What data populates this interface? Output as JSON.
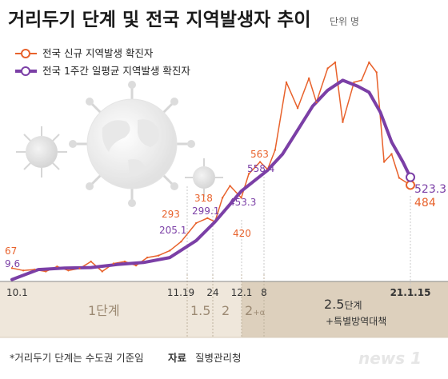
{
  "title": "거리두기 단계 및 전국 지역발생자 추이",
  "unit_label": "단위 명",
  "legend": [
    {
      "label": "전국 신규 지역발생 확진자",
      "color": "#e8622c"
    },
    {
      "label": "전국 1주간 일평균 지역발생 확진자",
      "color": "#7b3fa6"
    }
  ],
  "colors": {
    "daily": "#e8622c",
    "average": "#7b3fa6",
    "band_light": "#efe7db",
    "band_dark": "#ddd0bd"
  },
  "annotations": [
    {
      "text": "67",
      "series": "daily",
      "color": "#e8622c"
    },
    {
      "text": "9.6",
      "series": "average",
      "color": "#7b3fa6"
    },
    {
      "text": "293",
      "series": "daily",
      "color": "#e8622c"
    },
    {
      "text": "205.1",
      "series": "average",
      "color": "#7b3fa6"
    },
    {
      "text": "318",
      "series": "daily",
      "color": "#e8622c"
    },
    {
      "text": "299.1",
      "series": "average",
      "color": "#7b3fa6"
    },
    {
      "text": "453.3",
      "series": "average",
      "color": "#7b3fa6"
    },
    {
      "text": "420",
      "series": "daily",
      "color": "#e8622c"
    },
    {
      "text": "563",
      "series": "daily",
      "color": "#e8622c"
    },
    {
      "text": "558.4",
      "series": "average",
      "color": "#7b3fa6"
    },
    {
      "text": "523.3",
      "series": "average",
      "color": "#7b3fa6"
    },
    {
      "text": "484",
      "series": "daily",
      "color": "#e8622c"
    }
  ],
  "x_ticks": [
    "10.1",
    "11.19",
    "24",
    "12.1",
    "8",
    "21.1.15"
  ],
  "stages": [
    {
      "main": "1단계",
      "sub": ""
    },
    {
      "main": "1.5",
      "sub": ""
    },
    {
      "main": "2",
      "sub": ""
    },
    {
      "main": "2",
      "sub": "+α"
    },
    {
      "main": "2.5",
      "sub": "단계"
    }
  ],
  "stage_note": "+특별방역대책",
  "footnote": "*거리두기 단계는 수도권 기준임",
  "source_label": "자료",
  "source": "질병관리청",
  "brand": "news 1",
  "chart_data": {
    "type": "line",
    "title": "거리두기 단계 및 전국 지역발생자 추이",
    "unit": "명",
    "x_range": [
      "2020-10-01",
      "2021-01-15"
    ],
    "ylim": [
      0,
      1100
    ],
    "grid": false,
    "legend_position": "top-left",
    "series": [
      {
        "name": "전국 신규 지역발생 확진자",
        "points": [
          [
            "2020-10-01",
            67
          ],
          [
            "2020-10-04",
            55
          ],
          [
            "2020-10-07",
            60
          ],
          [
            "2020-10-10",
            50
          ],
          [
            "2020-10-13",
            75
          ],
          [
            "2020-10-16",
            55
          ],
          [
            "2020-10-19",
            65
          ],
          [
            "2020-10-22",
            100
          ],
          [
            "2020-10-25",
            50
          ],
          [
            "2020-10-28",
            90
          ],
          [
            "2020-10-31",
            100
          ],
          [
            "2020-11-03",
            80
          ],
          [
            "2020-11-06",
            120
          ],
          [
            "2020-11-09",
            130
          ],
          [
            "2020-11-12",
            155
          ],
          [
            "2020-11-15",
            200
          ],
          [
            "2020-11-19",
            293
          ],
          [
            "2020-11-22",
            318
          ],
          [
            "2020-11-24",
            300
          ],
          [
            "2020-11-26",
            420
          ],
          [
            "2020-11-28",
            480
          ],
          [
            "2020-12-01",
            420
          ],
          [
            "2020-12-03",
            540
          ],
          [
            "2020-12-06",
            600
          ],
          [
            "2020-12-08",
            563
          ],
          [
            "2020-12-10",
            660
          ],
          [
            "2020-12-13",
            1000
          ],
          [
            "2020-12-16",
            870
          ],
          [
            "2020-12-19",
            1020
          ],
          [
            "2020-12-21",
            900
          ],
          [
            "2020-12-24",
            1070
          ],
          [
            "2020-12-26",
            1130
          ],
          [
            "2020-12-28",
            800
          ],
          [
            "2020-12-31",
            1000
          ],
          [
            "2021-01-02",
            1010
          ],
          [
            "2021-01-04",
            1200
          ],
          [
            "2021-01-06",
            1050
          ],
          [
            "2021-01-08",
            600
          ],
          [
            "2021-01-10",
            640
          ],
          [
            "2021-01-12",
            520
          ],
          [
            "2021-01-15",
            484
          ]
        ]
      },
      {
        "name": "전국 1주간 일평균 지역발생 확진자",
        "points": [
          [
            "2020-10-01",
            9.6
          ],
          [
            "2020-10-08",
            60
          ],
          [
            "2020-10-15",
            67
          ],
          [
            "2020-10-22",
            70
          ],
          [
            "2020-10-29",
            85
          ],
          [
            "2020-11-05",
            95
          ],
          [
            "2020-11-12",
            120
          ],
          [
            "2020-11-19",
            205.1
          ],
          [
            "2020-11-24",
            299.1
          ],
          [
            "2020-12-01",
            453.3
          ],
          [
            "2020-12-08",
            558.4
          ],
          [
            "2020-12-12",
            640
          ],
          [
            "2020-12-16",
            760
          ],
          [
            "2020-12-20",
            880
          ],
          [
            "2020-12-24",
            960
          ],
          [
            "2020-12-28",
            1010
          ],
          [
            "2021-01-01",
            980
          ],
          [
            "2021-01-04",
            950
          ],
          [
            "2021-01-07",
            850
          ],
          [
            "2021-01-10",
            700
          ],
          [
            "2021-01-13",
            600
          ],
          [
            "2021-01-15",
            523.3
          ]
        ]
      }
    ]
  }
}
